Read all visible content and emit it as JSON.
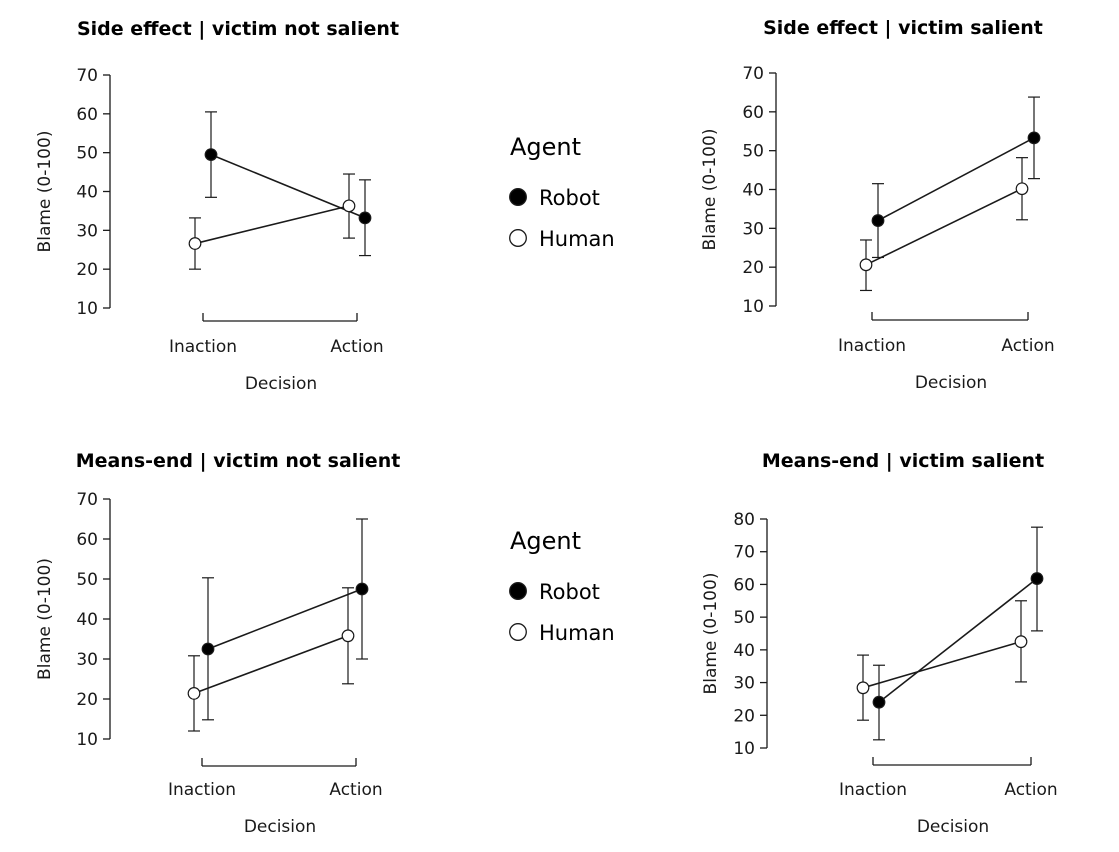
{
  "colors": {
    "robot": "#000000",
    "human": "#ffffff",
    "stroke": "#1a1a1a"
  },
  "legends": [
    {
      "title": "Agent",
      "items": [
        {
          "label": "Robot",
          "marker": "filled-circle"
        },
        {
          "label": "Human",
          "marker": "open-circle"
        }
      ]
    },
    {
      "title": "Agent",
      "items": [
        {
          "label": "Robot",
          "marker": "filled-circle"
        },
        {
          "label": "Human",
          "marker": "open-circle"
        }
      ]
    }
  ],
  "chart_data": [
    {
      "type": "line",
      "title": "Side effect  |  victim not salient",
      "xlabel": "Decision",
      "ylabel": "Blame (0-100)",
      "categories": [
        "Inaction",
        "Action"
      ],
      "ylim": [
        10,
        70
      ],
      "yticks": [
        10,
        20,
        30,
        40,
        50,
        60,
        70
      ],
      "grid": false,
      "series": [
        {
          "name": "Robot",
          "values": [
            49.5,
            33.2
          ],
          "err_low": [
            38.5,
            23.5
          ],
          "err_high": [
            60.5,
            43.0
          ]
        },
        {
          "name": "Human",
          "values": [
            26.6,
            36.3
          ],
          "err_low": [
            20.0,
            28.0
          ],
          "err_high": [
            33.2,
            44.5
          ]
        }
      ]
    },
    {
      "type": "line",
      "title": "Side effect  |  victim salient",
      "xlabel": "Decision",
      "ylabel": "Blame (0-100)",
      "categories": [
        "Inaction",
        "Action"
      ],
      "ylim": [
        10,
        70
      ],
      "yticks": [
        10,
        20,
        30,
        40,
        50,
        60,
        70
      ],
      "grid": false,
      "series": [
        {
          "name": "Robot",
          "values": [
            32.0,
            53.3
          ],
          "err_low": [
            22.5,
            42.8
          ],
          "err_high": [
            41.5,
            63.8
          ]
        },
        {
          "name": "Human",
          "values": [
            20.6,
            40.2
          ],
          "err_low": [
            14.0,
            32.2
          ],
          "err_high": [
            27.0,
            48.2
          ]
        }
      ]
    },
    {
      "type": "line",
      "title": "Means-end  |  victim not salient",
      "xlabel": "Decision",
      "ylabel": "Blame (0-100)",
      "categories": [
        "Inaction",
        "Action"
      ],
      "ylim": [
        10,
        70
      ],
      "yticks": [
        10,
        20,
        30,
        40,
        50,
        60,
        70
      ],
      "grid": false,
      "series": [
        {
          "name": "Robot",
          "values": [
            32.5,
            47.5
          ],
          "err_low": [
            14.8,
            30.0
          ],
          "err_high": [
            50.3,
            65.0
          ]
        },
        {
          "name": "Human",
          "values": [
            21.4,
            35.8
          ],
          "err_low": [
            12.0,
            23.8
          ],
          "err_high": [
            30.8,
            47.8
          ]
        }
      ]
    },
    {
      "type": "line",
      "title": "Means-end  |  victim salient",
      "xlabel": "Decision",
      "ylabel": "Blame (0-100)",
      "categories": [
        "Inaction",
        "Action"
      ],
      "ylim": [
        10,
        80
      ],
      "yticks": [
        10,
        20,
        30,
        40,
        50,
        60,
        70,
        80
      ],
      "grid": false,
      "series": [
        {
          "name": "Robot",
          "values": [
            24.0,
            61.8
          ],
          "err_low": [
            12.5,
            45.8
          ],
          "err_high": [
            35.3,
            77.5
          ]
        },
        {
          "name": "Human",
          "values": [
            28.4,
            42.5
          ],
          "err_low": [
            18.5,
            30.2
          ],
          "err_high": [
            38.4,
            55.0
          ]
        }
      ]
    }
  ]
}
